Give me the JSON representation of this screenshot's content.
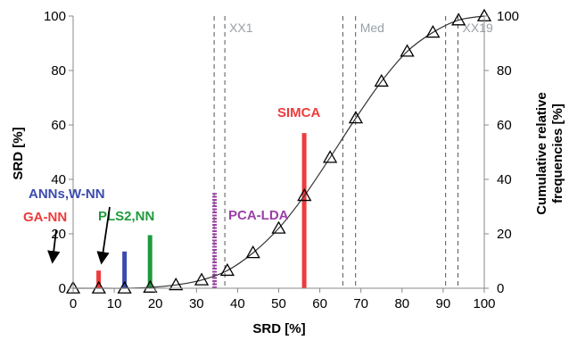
{
  "chart_data": {
    "type": "bar",
    "xlabel": "SRD [%]",
    "ylabel": "SRD [%]",
    "y2label_line1": "Cumulative relative",
    "y2label_line2": "frequencies [%]",
    "xlim": [
      0,
      100
    ],
    "ylim": [
      0,
      100
    ],
    "y2lim": [
      0,
      100
    ],
    "x_ticks": [
      0,
      10,
      20,
      30,
      40,
      50,
      60,
      70,
      80,
      90,
      100
    ],
    "y_ticks": [
      0,
      20,
      40,
      60,
      80,
      100
    ],
    "y2_ticks": [
      0,
      20,
      40,
      60,
      80,
      100
    ],
    "grid": false,
    "methods": [
      {
        "name": "GA-NN",
        "x": 6.2,
        "value": 6.5,
        "color": "#ee3b3b",
        "style": "solid"
      },
      {
        "name": "ANNs,W-NN",
        "x": 12.5,
        "value": 13.5,
        "color": "#3b4bb0",
        "style": "solid"
      },
      {
        "name": "PLS2,NN",
        "x": 18.7,
        "value": 19.5,
        "color": "#1e9a3c",
        "style": "solid"
      },
      {
        "name": "PCA-LDA",
        "x": 34.4,
        "value": 35,
        "color": "#9b3fa6",
        "style": "dotted"
      },
      {
        "name": "SIMCA",
        "x": 56.2,
        "value": 57,
        "color": "#ee3b3b",
        "style": "solid"
      }
    ],
    "cumulative_series": {
      "marker": "triangle",
      "x": [
        0,
        6.25,
        12.5,
        18.75,
        25,
        31.25,
        37.5,
        43.75,
        50,
        56.25,
        62.5,
        68.75,
        75,
        81.25,
        87.5,
        93.75,
        100
      ],
      "y": [
        0,
        0,
        0,
        0.3,
        1.2,
        3,
        6.5,
        13,
        22,
        34,
        48,
        62.5,
        76,
        87,
        94,
        98.5,
        100
      ]
    },
    "reference_lines": [
      {
        "label": "XX1",
        "x": 36.9
      },
      {
        "label": "",
        "x": 34.3
      },
      {
        "label": "Med",
        "x": 68.7
      },
      {
        "label": "",
        "x": 65.6
      },
      {
        "label": "XX19",
        "x": 93.6
      },
      {
        "label": "",
        "x": 90.6
      }
    ]
  }
}
